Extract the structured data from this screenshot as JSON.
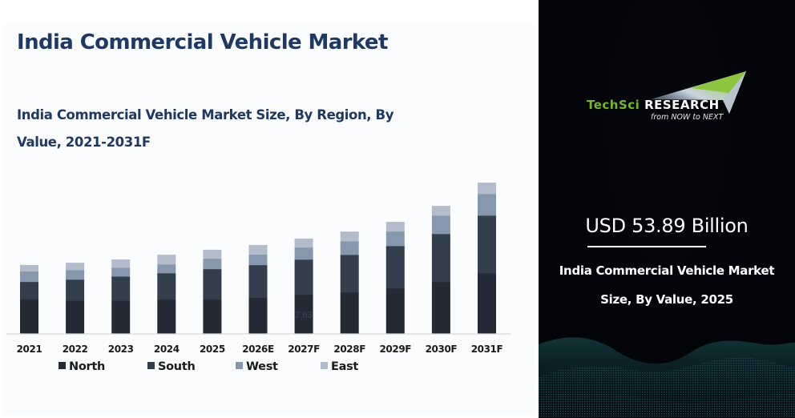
{
  "header": {
    "title": "India Commercial Vehicle Market",
    "subtitle": "India Commercial Vehicle Market Size, By Region, By Value, 2021-2031F"
  },
  "chart_data": {
    "type": "bar",
    "stacked": true,
    "title": "India Commercial Vehicle Market Size, By Region, By Value, 2021-2031F",
    "xlabel": "",
    "ylabel": "",
    "ylim": [
      0,
      12
    ],
    "grid": false,
    "legend_position": "bottom",
    "categories": [
      "2021",
      "2022",
      "2023",
      "2024",
      "2025",
      "2026E",
      "2027F",
      "2028F",
      "2029F",
      "2030F",
      "2031F"
    ],
    "series": [
      {
        "name": "North",
        "color": "#232a35",
        "values": [
          2.31,
          2.25,
          2.25,
          2.31,
          2.31,
          2.42,
          2.63,
          2.79,
          3.06,
          3.49,
          4.08
        ]
      },
      {
        "name": "South",
        "color": "#343f4e",
        "values": [
          1.18,
          1.4,
          1.61,
          1.77,
          2.04,
          2.2,
          2.36,
          2.52,
          2.84,
          3.22,
          3.86
        ]
      },
      {
        "name": "West",
        "color": "#8797ad",
        "values": [
          0.7,
          0.64,
          0.59,
          0.59,
          0.7,
          0.7,
          0.81,
          0.91,
          0.97,
          1.23,
          1.45
        ]
      },
      {
        "name": "East",
        "color": "#b2bccb",
        "values": [
          0.43,
          0.48,
          0.54,
          0.64,
          0.59,
          0.64,
          0.59,
          0.64,
          0.64,
          0.64,
          0.75
        ]
      }
    ],
    "annotations": [
      {
        "category": "2027F",
        "series": "North",
        "text": "2.63"
      }
    ]
  },
  "brand": {
    "name_part1": "TechSci",
    "name_part2": "Research",
    "tagline": "from NOW to NEXT",
    "green": "#76b82a"
  },
  "kpi": {
    "value": "USD 53.89 Billion",
    "caption_line1": "India Commercial Vehicle Market",
    "caption_line2": "Size, By Value, 2025"
  }
}
